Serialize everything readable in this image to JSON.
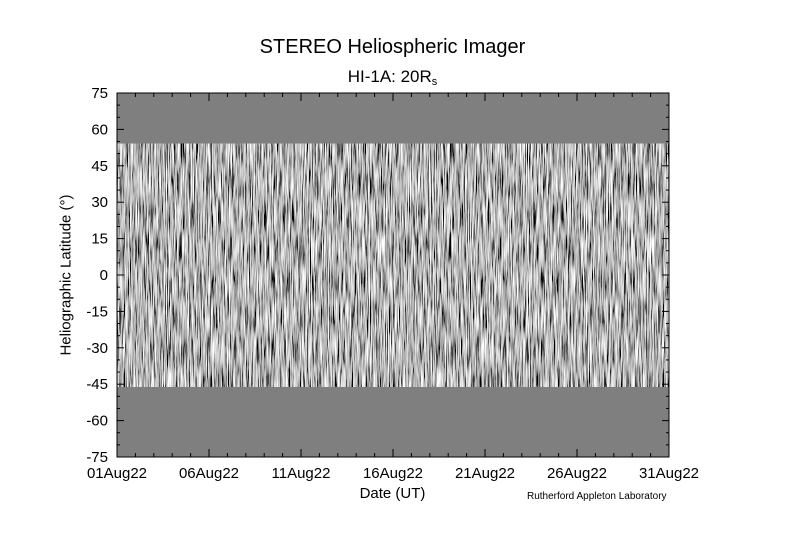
{
  "chart_data": {
    "type": "heatmap",
    "title": "STEREO Heliospheric Imager",
    "subtitle_main": "HI-1A: 20R",
    "subtitle_sub": "s",
    "xlabel": "Date (UT)",
    "ylabel": "Heliographic Latitude (°)",
    "credit": "Rutherford Appleton Laboratory",
    "x_start": "01Aug22",
    "x_end": "31Aug22",
    "x_ticks": [
      {
        "label": "01Aug22",
        "day": 1
      },
      {
        "label": "06Aug22",
        "day": 6
      },
      {
        "label": "11Aug22",
        "day": 11
      },
      {
        "label": "16Aug22",
        "day": 16
      },
      {
        "label": "21Aug22",
        "day": 21
      },
      {
        "label": "26Aug22",
        "day": 26
      },
      {
        "label": "31Aug22",
        "day": 31
      }
    ],
    "xlim": [
      1,
      31
    ],
    "y_ticks": [
      75,
      60,
      45,
      30,
      15,
      0,
      -15,
      -30,
      -45,
      -60,
      -75
    ],
    "ylim": [
      -75,
      75
    ],
    "data_coverage": {
      "lat_max_start": 54,
      "lat_max_end": 51,
      "lat_min_start": -44,
      "lat_min_end": -46
    },
    "colors": {
      "no_data": "#7f7f7f",
      "background": "#ffffff",
      "axis": "#000000"
    }
  }
}
